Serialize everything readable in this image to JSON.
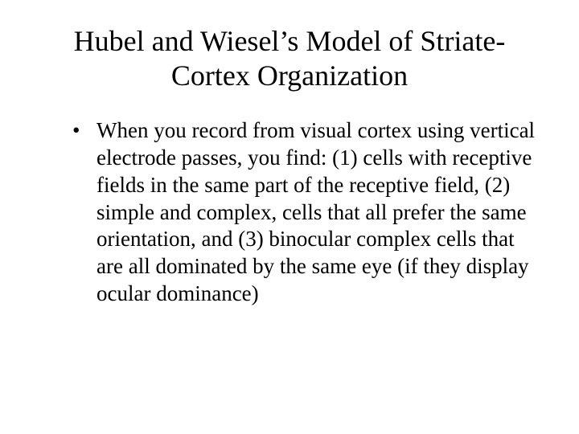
{
  "slide": {
    "title": "Hubel and Wiesel’s Model of Striate-Cortex Organization",
    "bullet_text": "When you record from visual cortex using vertical electrode passes, you find: (1) cells with receptive fields in the same part of the receptive field, (2) simple and complex, cells that all prefer the same orientation, and (3) binocular complex cells that are all dominated by the same eye (if they display ocular dominance)",
    "background_color": "#ffffff",
    "text_color": "#000000",
    "title_fontsize": 36,
    "body_fontsize": 27,
    "font_family": "Times New Roman"
  }
}
